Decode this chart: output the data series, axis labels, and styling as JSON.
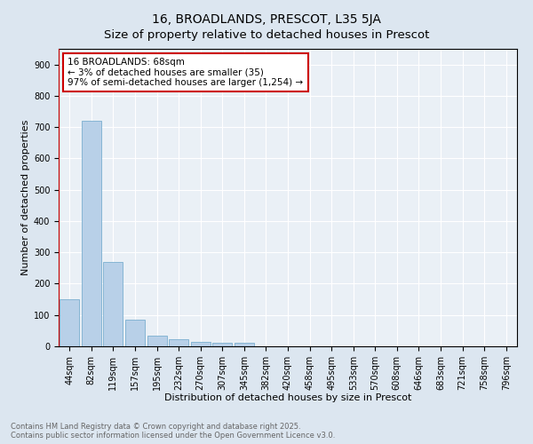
{
  "title": "16, BROADLANDS, PRESCOT, L35 5JA",
  "subtitle": "Size of property relative to detached houses in Prescot",
  "xlabel": "Distribution of detached houses by size in Prescot",
  "ylabel": "Number of detached properties",
  "bar_labels": [
    "44sqm",
    "82sqm",
    "119sqm",
    "157sqm",
    "195sqm",
    "232sqm",
    "270sqm",
    "307sqm",
    "345sqm",
    "382sqm",
    "420sqm",
    "458sqm",
    "495sqm",
    "533sqm",
    "570sqm",
    "608sqm",
    "646sqm",
    "683sqm",
    "721sqm",
    "758sqm",
    "796sqm"
  ],
  "bar_values": [
    150,
    720,
    270,
    85,
    35,
    22,
    13,
    12,
    11,
    0,
    0,
    0,
    0,
    0,
    0,
    0,
    0,
    0,
    0,
    0,
    0
  ],
  "bar_color": "#b8d0e8",
  "bar_edge_color": "#7aaed0",
  "vline_color": "#cc0000",
  "annotation_text": "16 BROADLANDS: 68sqm\n← 3% of detached houses are smaller (35)\n97% of semi-detached houses are larger (1,254) →",
  "annotation_box_color": "#ffffff",
  "annotation_box_edge": "#cc0000",
  "ylim": [
    0,
    950
  ],
  "yticks": [
    0,
    100,
    200,
    300,
    400,
    500,
    600,
    700,
    800,
    900
  ],
  "bg_color": "#dce6f0",
  "plot_bg_color": "#eaf0f6",
  "footer_text": "Contains HM Land Registry data © Crown copyright and database right 2025.\nContains public sector information licensed under the Open Government Licence v3.0.",
  "title_fontsize": 10,
  "xlabel_fontsize": 8,
  "ylabel_fontsize": 8,
  "tick_fontsize": 7,
  "annotation_fontsize": 7.5,
  "footer_fontsize": 6
}
